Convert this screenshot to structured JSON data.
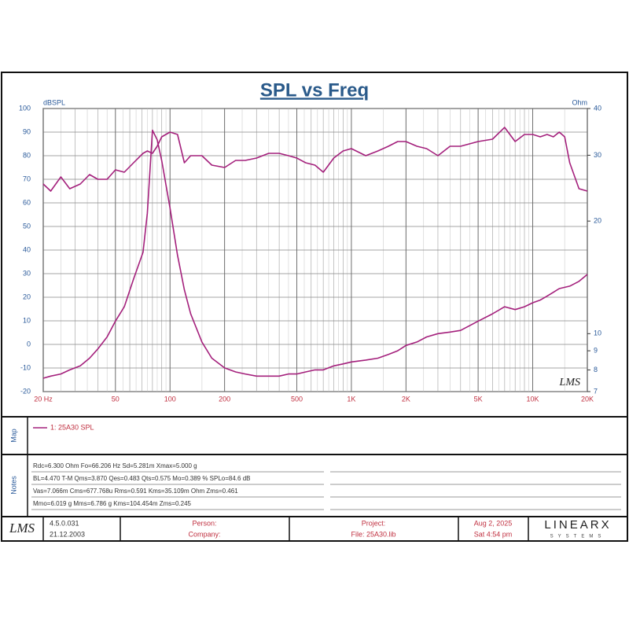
{
  "chart_data": {
    "type": "line",
    "title": "SPL vs Freq",
    "ylabel": "dBSPL",
    "y2label": "Ohm",
    "logo": "LMS",
    "xlog": true,
    "y2log": true,
    "grid": true,
    "xlim": [
      20,
      20000
    ],
    "xticks": [
      {
        "value": 20,
        "label": "20 Hz"
      },
      50,
      100,
      200,
      500,
      {
        "value": 1000,
        "label": "1K"
      },
      {
        "value": 2000,
        "label": "2K"
      },
      {
        "value": 5000,
        "label": "5K"
      },
      {
        "value": 10000,
        "label": "10K"
      },
      {
        "value": 20000,
        "label": "20K"
      }
    ],
    "ylim": [
      -20,
      100
    ],
    "yticks": [
      100,
      90,
      80,
      70,
      60,
      50,
      40,
      30,
      20,
      10,
      0,
      -10,
      -20
    ],
    "y2lim": [
      7,
      40
    ],
    "y2ticks": [
      40,
      30,
      20,
      10,
      9,
      8,
      7
    ],
    "x": [
      20,
      22,
      25,
      28,
      32,
      36,
      40,
      45,
      50,
      56,
      63,
      71,
      75,
      80,
      85,
      90,
      100,
      110,
      120,
      130,
      150,
      170,
      200,
      230,
      260,
      300,
      350,
      400,
      450,
      500,
      560,
      630,
      700,
      800,
      900,
      1000,
      1200,
      1400,
      1600,
      1800,
      2000,
      2300,
      2600,
      3000,
      3500,
      4000,
      5000,
      6000,
      7000,
      8000,
      9000,
      10000,
      11000,
      12000,
      13000,
      14000,
      15000,
      16000,
      18000,
      20000
    ],
    "series": [
      {
        "name": "1: 25A30 SPL",
        "color": "#a4207c",
        "values": [
          68,
          65,
          71,
          66,
          68,
          72,
          70,
          70,
          74,
          73,
          77,
          81,
          82,
          81,
          84,
          88,
          90,
          89,
          77,
          80,
          80,
          76,
          75,
          78,
          78,
          79,
          81,
          81,
          80,
          79,
          77,
          76,
          73,
          79,
          82,
          83,
          80,
          82,
          84,
          86,
          86,
          84,
          83,
          80,
          84,
          84,
          86,
          87,
          92,
          86,
          89,
          89,
          88,
          89,
          88,
          90,
          88,
          77,
          66,
          65
        ]
      },
      {
        "color": "#a4207c",
        "axis": "y2",
        "values": [
          7.6,
          7.7,
          7.8,
          8.0,
          8.2,
          8.6,
          9.1,
          9.8,
          10.8,
          11.8,
          14.0,
          16.5,
          21,
          35,
          33,
          29,
          21.7,
          16.2,
          13.1,
          11.3,
          9.5,
          8.6,
          8.1,
          7.9,
          7.8,
          7.7,
          7.7,
          7.7,
          7.8,
          7.8,
          7.9,
          8.0,
          8.0,
          8.2,
          8.3,
          8.4,
          8.5,
          8.6,
          8.8,
          9.0,
          9.3,
          9.5,
          9.8,
          10,
          10.1,
          10.2,
          10.8,
          11.3,
          11.8,
          11.6,
          11.8,
          12.1,
          12.3,
          12.6,
          12.9,
          13.2,
          13.3,
          13.4,
          13.8,
          14.4
        ]
      }
    ]
  },
  "legend_panel": {
    "label": "Map"
  },
  "notes": {
    "label": "Notes",
    "lines": [
      "Rdc=6.300 Ohm  Fo=66.206 Hz  Sd=5.281m  Xmax=5.000 g",
      "BL=4.470 T-M  Qms=3.870  Qes=0.483  Qts=0.575  Mo=0.389 %  SPLo=84.6 dB",
      "Vas=7.066m  Cms=677.768u  Rms=0.591  Kms=35.109m Ohm  Zms=0.461",
      "Mmo=6.019 g  Mms=6.786 g  Kms=104.454m  Zms=0.245"
    ]
  },
  "footer": {
    "logo": "LMS",
    "version": "4.5.0.031",
    "date_built": "21.12.2003",
    "person": "Person:",
    "company": "Company:",
    "project": "Project:",
    "file": "File: 25A30.lib",
    "date": "Aug  2, 2025",
    "time": "Sat  4:54 pm",
    "brand": "LINEARX",
    "brand_sub": "SYSTEMS"
  }
}
